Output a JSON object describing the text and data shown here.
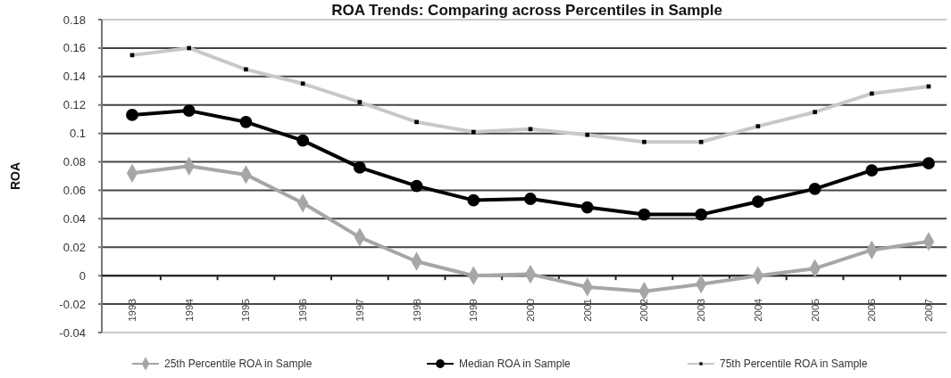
{
  "chart_data": {
    "type": "line",
    "title": "ROA Trends: Comparing across Percentiles in Sample",
    "ylabel": "ROA",
    "categories": [
      "1993",
      "1994",
      "1995",
      "1996",
      "1997",
      "1998",
      "1999",
      "2000",
      "2001",
      "2002",
      "2003",
      "2004",
      "2005",
      "2006",
      "2007"
    ],
    "series": [
      {
        "name": "25th Percentile ROA in Sample",
        "color": "#a6a6a6",
        "marker": "diamond",
        "values": [
          0.072,
          0.077,
          0.071,
          0.051,
          0.027,
          0.01,
          0,
          0.001,
          -0.008,
          -0.011,
          -0.006,
          0,
          0.005,
          0.018,
          0.024
        ]
      },
      {
        "name": "Median ROA in Sample",
        "color": "#000000",
        "marker": "circle",
        "values": [
          0.113,
          0.116,
          0.108,
          0.095,
          0.076,
          0.063,
          0.053,
          0.054,
          0.048,
          0.043,
          0.043,
          0.052,
          0.061,
          0.074,
          0.079
        ]
      },
      {
        "name": "75th Percentile ROA in Sample",
        "color": "#c8c8c8",
        "marker": "square",
        "values": [
          0.155,
          0.16,
          0.145,
          0.135,
          0.122,
          0.108,
          0.101,
          0.103,
          0.099,
          0.094,
          0.094,
          0.105,
          0.115,
          0.128,
          0.133
        ]
      }
    ],
    "ylim": [
      -0.04,
      0.18
    ],
    "yticks": [
      -0.04,
      -0.02,
      0,
      0.02,
      0.04,
      0.06,
      0.08,
      0.1,
      0.12,
      0.14,
      0.16,
      0.18
    ],
    "grid": "y",
    "legend": "bottom",
    "line_style": "solid"
  }
}
